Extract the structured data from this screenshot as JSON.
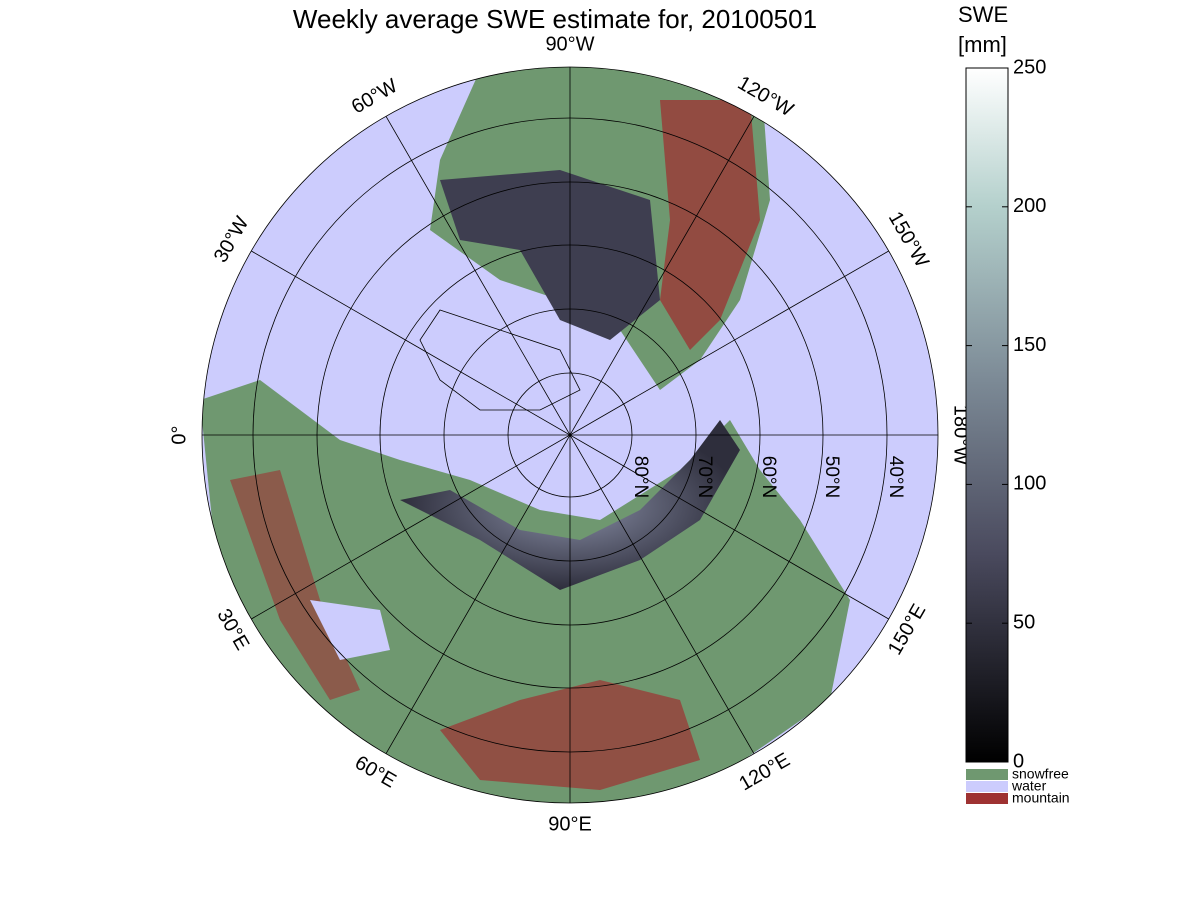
{
  "title": "Weekly average SWE estimate for, 20100501",
  "map": {
    "longitude_labels": [
      "90°W",
      "120°W",
      "150°W",
      "180°W",
      "150°E",
      "120°E",
      "90°E",
      "60°E",
      "30°E",
      "0°",
      "30°W",
      "60°W"
    ],
    "latitude_labels": [
      "80°N",
      "70°N",
      "60°N",
      "50°N",
      "40°N"
    ]
  },
  "colorbar": {
    "title": [
      "SWE",
      "[mm]"
    ],
    "lim": [
      0,
      250
    ],
    "ticks": [
      0,
      50,
      100,
      150,
      200,
      250
    ],
    "categories": [
      {
        "name": "snowfree",
        "color": "#6f9870"
      },
      {
        "name": "water",
        "color": "#ccccfd"
      },
      {
        "name": "mountain",
        "color": "#9e3232"
      }
    ]
  }
}
